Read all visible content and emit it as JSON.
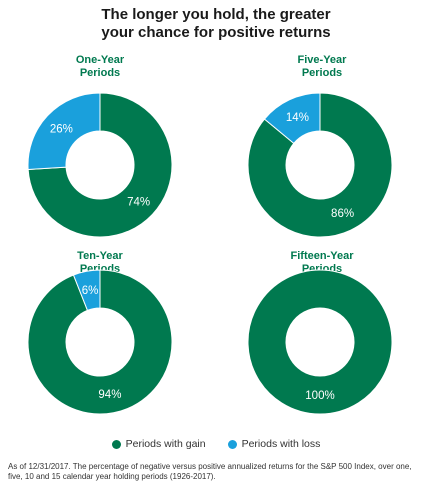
{
  "title_lines": [
    "The longer you hold, the greater",
    "your chance for positive returns"
  ],
  "colors": {
    "gain": "#00794f",
    "loss": "#1aa0dc"
  },
  "legend": {
    "gain_label": "Periods with gain",
    "loss_label": "Periods with loss"
  },
  "footnote": "As of 12/31/2017. The percentage of negative versus positive annualized returns for the S&P 500 Index, over one, five, 10 and 15 calendar year holding periods (1926-2017).",
  "chart_data": [
    {
      "type": "pie",
      "title_lines": [
        "One-Year",
        "Periods"
      ],
      "categories": [
        "Periods with gain",
        "Periods with loss"
      ],
      "values": [
        74,
        26
      ],
      "labels": [
        "74%",
        "26%"
      ]
    },
    {
      "type": "pie",
      "title_lines": [
        "Five-Year",
        "Periods"
      ],
      "categories": [
        "Periods with gain",
        "Periods with loss"
      ],
      "values": [
        86,
        14
      ],
      "labels": [
        "86%",
        "14%"
      ]
    },
    {
      "type": "pie",
      "title_lines": [
        "Ten-Year",
        "Periods"
      ],
      "categories": [
        "Periods with gain",
        "Periods with loss"
      ],
      "values": [
        94,
        6
      ],
      "labels": [
        "94%",
        "6%"
      ]
    },
    {
      "type": "pie",
      "title_lines": [
        "Fifteen-Year",
        "Periods"
      ],
      "categories": [
        "Periods with gain",
        "Periods with loss"
      ],
      "values": [
        100,
        0
      ],
      "labels": [
        "100%",
        ""
      ]
    }
  ]
}
